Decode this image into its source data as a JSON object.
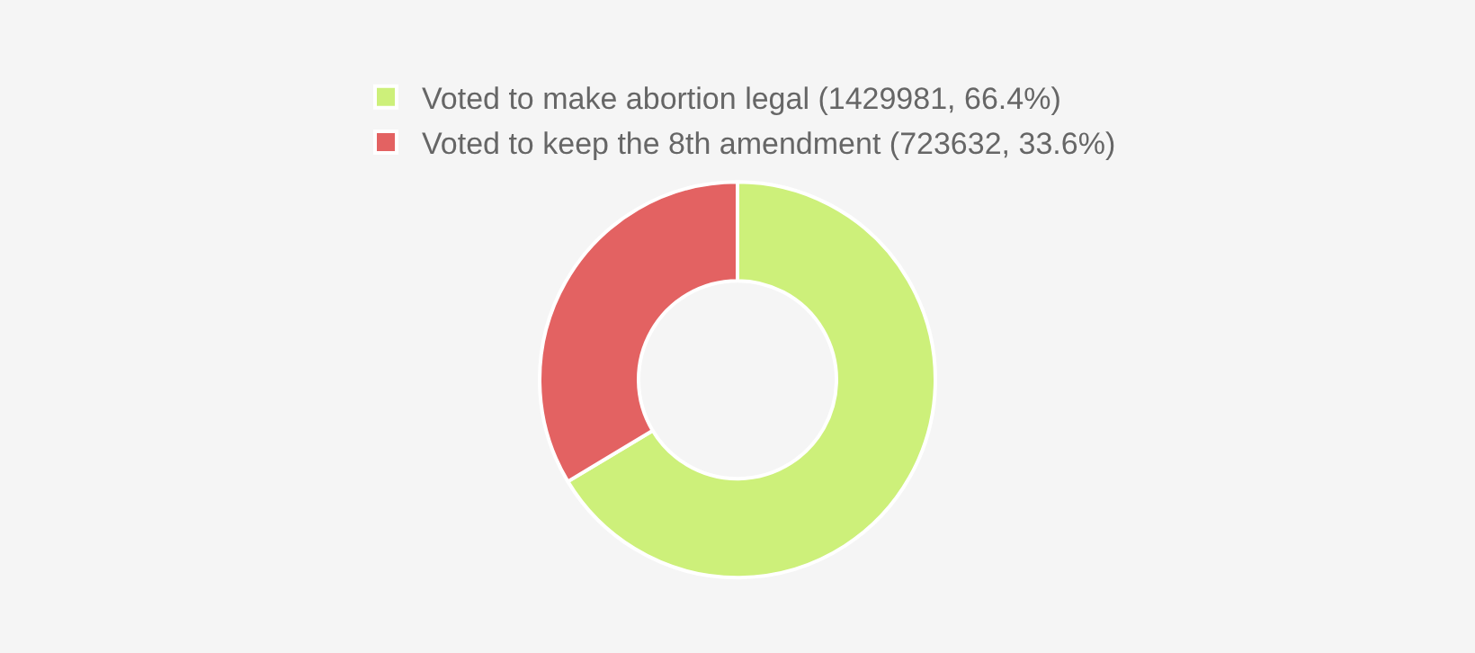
{
  "chart_data": {
    "type": "donut",
    "categories": [
      "Voted to make abortion legal (1429981, 66.4%)",
      "Voted to keep the 8th amendment (723632, 33.6%)"
    ],
    "values": [
      1429981,
      723632
    ],
    "colors": [
      "#cdf07a",
      "#e36262"
    ],
    "legend": "top"
  }
}
